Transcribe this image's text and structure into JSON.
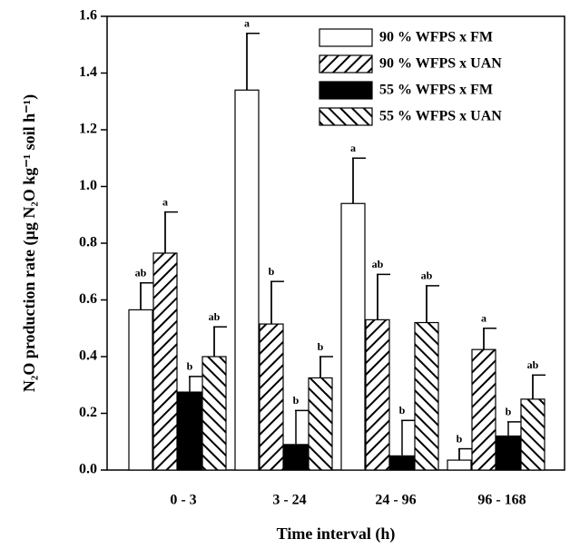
{
  "chart_data": {
    "type": "bar",
    "xlabel": "Time interval (h)",
    "ylabel": "N₂O production rate (µg N₂O kg⁻¹ soil h⁻¹)",
    "categories": [
      "0 - 3",
      "3 - 24",
      "24 - 96",
      "96 - 168"
    ],
    "series": [
      {
        "name": "90 % WFPS x FM",
        "color": "#ffffff",
        "hatch": null,
        "values": [
          0.565,
          1.34,
          0.94,
          0.035
        ],
        "errors": [
          0.095,
          0.2,
          0.16,
          0.04
        ],
        "letters": [
          "ab",
          "a",
          "a",
          "b"
        ]
      },
      {
        "name": "90 % WFPS x UAN",
        "color": "#ffffff",
        "hatch": "forward",
        "values": [
          0.765,
          0.515,
          0.53,
          0.425
        ],
        "errors": [
          0.145,
          0.15,
          0.16,
          0.075
        ],
        "letters": [
          "a",
          "b",
          "ab",
          "a"
        ]
      },
      {
        "name": "55 % WFPS x FM",
        "color": "#000000",
        "hatch": null,
        "values": [
          0.275,
          0.09,
          0.05,
          0.12
        ],
        "errors": [
          0.055,
          0.12,
          0.125,
          0.05
        ],
        "letters": [
          "b",
          "b",
          "b",
          "b"
        ]
      },
      {
        "name": "55 % WFPS x UAN",
        "color": "#ffffff",
        "hatch": "backward",
        "values": [
          0.4,
          0.325,
          0.52,
          0.25
        ],
        "errors": [
          0.105,
          0.075,
          0.13,
          0.085
        ],
        "letters": [
          "ab",
          "b",
          "ab",
          "ab"
        ]
      }
    ],
    "ylim": [
      0,
      1.6
    ],
    "yticks": [
      {
        "value": 0,
        "label": "0.0"
      },
      0.2,
      0.4,
      0.6,
      0.8,
      {
        "value": 1,
        "label": "1.0"
      },
      1.2,
      1.4,
      1.6
    ],
    "legend": "upper right"
  }
}
